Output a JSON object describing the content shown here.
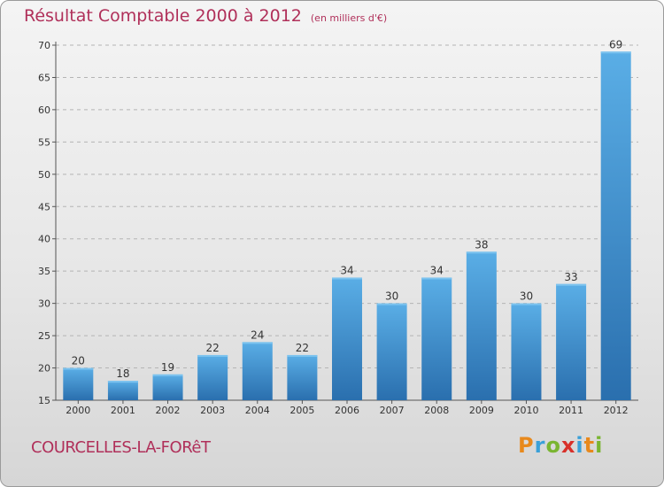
{
  "chart_data": {
    "type": "bar",
    "title": "Résultat Comptable 2000 à 2012",
    "subtitle": "(en milliers d'€)",
    "categories": [
      "2000",
      "2001",
      "2002",
      "2003",
      "2004",
      "2005",
      "2006",
      "2007",
      "2008",
      "2009",
      "2010",
      "2011",
      "2012"
    ],
    "values": [
      20,
      18,
      19,
      22,
      24,
      22,
      34,
      30,
      34,
      38,
      30,
      33,
      69
    ],
    "ylim": [
      15,
      70
    ],
    "yticks": [
      15,
      20,
      25,
      30,
      35,
      40,
      45,
      50,
      55,
      60,
      65,
      70
    ],
    "xlabel": "",
    "ylabel": "",
    "grid": true,
    "bar_color": "#3d8fd1",
    "bar_color_light": "#5aaee6",
    "bar_color_dark": "#2a6fae"
  },
  "commune": "COURCELLES-LA-FORêT",
  "logo": {
    "letters": [
      "P",
      "r",
      "o",
      "x",
      "i",
      "t",
      "i"
    ],
    "colors": [
      "#e8891c",
      "#3aa0d8",
      "#7ab531",
      "#d8302a",
      "#3aa0d8",
      "#e8891c",
      "#7ab531"
    ]
  },
  "accent_color": "#b0305a"
}
